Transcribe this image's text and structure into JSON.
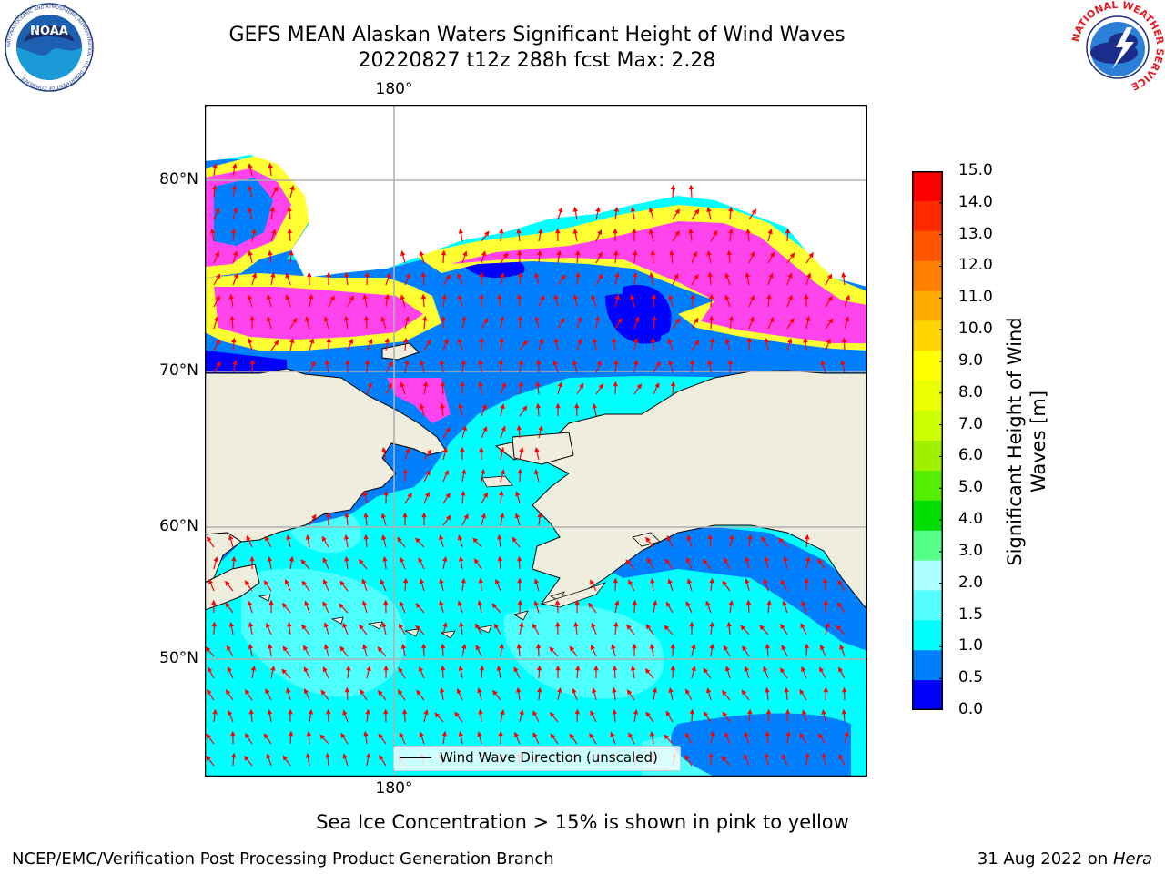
{
  "header": {
    "title_line1": "GEFS MEAN Alaskan Waters Significant Height of Wind Waves",
    "title_line2": "20220827 t12z 288h fcst   Max: 2.28"
  },
  "logos": {
    "noaa": {
      "text": "NOAA",
      "ring_text": "NATIONAL OCEANIC AND ATMOSPHERIC ADMINISTRATION · U.S. DEPARTMENT OF COMMERCE"
    },
    "nws": {
      "ring_text": "NATIONAL WEATHER SERVICE"
    }
  },
  "map": {
    "lat_labels": [
      "80°N",
      "70°N",
      "60°N",
      "50°N"
    ],
    "lon_label_top": "180°",
    "lon_label_bottom": "180°",
    "colors": {
      "land": "#efedde",
      "ocean_low": "#0000ff",
      "ice_pink": "#ff44ee",
      "ice_yellow": "#ffff33",
      "arrow": "#ff0000",
      "grid": "#b0b0b0"
    }
  },
  "colorbar": {
    "title_line1": "Significant Height of Wind",
    "title_line2": "Waves [m]",
    "ticks": [
      "15.0",
      "14.0",
      "13.0",
      "12.0",
      "11.0",
      "10.0",
      "9.0",
      "8.0",
      "7.0",
      "6.0",
      "5.0",
      "4.0",
      "3.0",
      "2.0",
      "1.5",
      "1.0",
      "0.5",
      "0.0"
    ],
    "colors_top_to_bottom": [
      "#ff0000",
      "#ff2a00",
      "#ff5500",
      "#ff8000",
      "#ffaa00",
      "#ffd400",
      "#ffff00",
      "#eaff00",
      "#ccff00",
      "#a0f000",
      "#55ee00",
      "#00dd00",
      "#55ff88",
      "#aaffff",
      "#55ffff",
      "#00ffff",
      "#0080ff",
      "#0000ff"
    ]
  },
  "legend": {
    "label": "Wind Wave Direction (unscaled)"
  },
  "notes": {
    "ice": "Sea Ice Concentration > 15% is shown in pink to yellow"
  },
  "footer": {
    "left": "NCEP/EMC/Verification Post Processing Product Generation Branch",
    "right_date": "31 Aug 2022 on ",
    "right_machine": "Hera"
  }
}
